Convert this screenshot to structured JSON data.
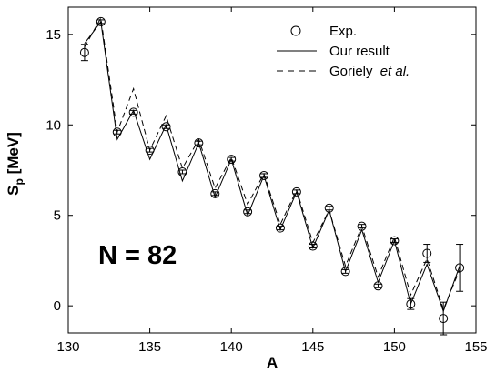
{
  "chart_data": {
    "type": "line",
    "title": "",
    "xlabel": "A",
    "ylabel_main": "S",
    "ylabel_sub": "p",
    "ylabel_unit": " [MeV]",
    "xlim": [
      130,
      155
    ],
    "ylim": [
      -1.5,
      16.5
    ],
    "xticks": [
      130,
      135,
      140,
      145,
      150,
      155
    ],
    "yticks": [
      0,
      5,
      10,
      15
    ],
    "grid": false,
    "legend_position": "top-right",
    "legend": [
      {
        "text": "Exp.",
        "emphasis": ""
      },
      {
        "text": "Our result",
        "emphasis": ""
      },
      {
        "text": "Goriely ",
        "emphasis": "et al."
      }
    ],
    "annotation": "N = 82",
    "experiment": {
      "x": [
        131,
        132,
        133,
        134,
        135,
        136,
        137,
        138,
        139,
        140,
        141,
        142,
        143,
        144,
        145,
        146,
        147,
        148,
        149,
        150,
        151,
        152,
        153,
        154
      ],
      "y": [
        14.0,
        15.7,
        9.6,
        10.7,
        8.6,
        9.9,
        7.4,
        9.0,
        6.2,
        8.1,
        5.2,
        7.2,
        4.3,
        6.3,
        3.3,
        5.4,
        1.9,
        4.4,
        1.1,
        3.6,
        0.1,
        2.9,
        -0.7,
        2.1
      ],
      "err": [
        0.45,
        0.1,
        0.1,
        0.1,
        0.1,
        0.1,
        0.1,
        0.1,
        0.1,
        0.1,
        0.1,
        0.1,
        0.1,
        0.1,
        0.1,
        0.1,
        0.1,
        0.1,
        0.1,
        0.1,
        0.3,
        0.5,
        0.9,
        1.3
      ]
    },
    "series": [
      {
        "style": "solid",
        "x": [
          131,
          132,
          133,
          134,
          135,
          136,
          137,
          138,
          139,
          140,
          141,
          142,
          143,
          144,
          145,
          146,
          147,
          148,
          149,
          150,
          151,
          152,
          153,
          154
        ],
        "y": [
          14.5,
          15.7,
          9.2,
          10.8,
          8.1,
          10.0,
          6.9,
          9.0,
          6.0,
          8.1,
          5.0,
          7.2,
          4.2,
          6.3,
          3.2,
          5.3,
          1.9,
          4.2,
          1.3,
          3.6,
          0.1,
          2.3,
          -0.3,
          2.2
        ]
      },
      {
        "style": "dashed",
        "x": [
          131,
          132,
          133,
          134,
          135,
          136,
          137,
          138,
          139,
          140,
          141,
          142,
          143,
          144,
          145,
          146,
          147,
          148,
          149,
          150,
          151,
          152,
          153,
          154
        ],
        "y": [
          14.3,
          15.9,
          9.6,
          12.0,
          8.6,
          10.5,
          7.6,
          9.2,
          6.5,
          8.2,
          5.6,
          7.3,
          4.5,
          6.4,
          3.5,
          5.3,
          2.2,
          4.4,
          1.6,
          3.8,
          0.6,
          2.6,
          -0.2,
          2.0
        ]
      }
    ]
  }
}
